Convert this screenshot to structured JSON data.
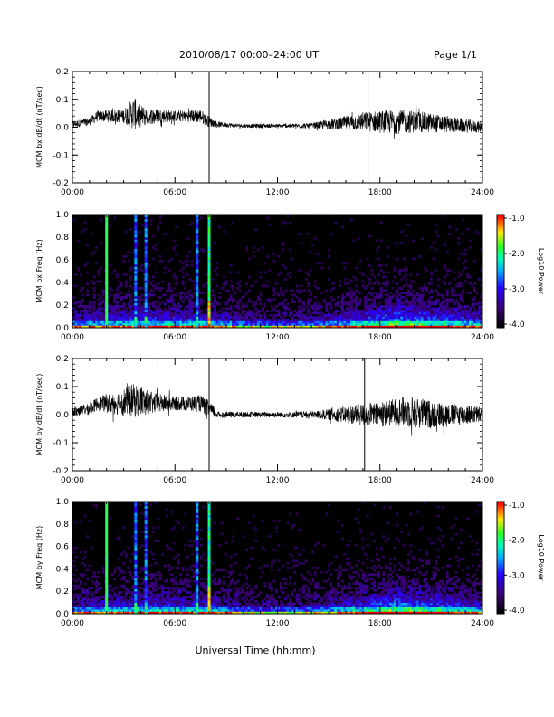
{
  "header": {
    "title": "2010/08/17  00:00–24:00 UT",
    "page": "Page 1/1"
  },
  "xaxis": {
    "label": "Universal Time (hh:mm)",
    "ticks": [
      "00:00",
      "06:00",
      "12:00",
      "18:00",
      "24:00"
    ]
  },
  "colorbar": {
    "label": "Log10 Power",
    "ticks": [
      "-1.0",
      "-2.0",
      "-3.0",
      "-4.0"
    ]
  },
  "chart_data": [
    {
      "type": "line",
      "ylabel": "MCM bx dB/dt (nT/sec)",
      "xlim": [
        0,
        24
      ],
      "ylim": [
        -0.2,
        0.2
      ],
      "yticks": [
        "0.2",
        "0.1",
        "0.0",
        "-0.1",
        "-0.2"
      ],
      "spikes_hours": [
        8.0,
        17.3
      ],
      "envelope": {
        "hours": [
          0,
          1,
          1.5,
          3,
          3.6,
          4,
          4.5,
          6,
          7.5,
          8,
          8.5,
          10,
          11,
          12,
          14,
          15,
          16,
          17,
          18,
          19,
          20,
          21,
          22,
          23,
          24
        ],
        "mean": [
          0.01,
          0.02,
          0.04,
          0.04,
          0.05,
          0.04,
          0.04,
          0.04,
          0.04,
          0.02,
          0.01,
          0.005,
          0.005,
          0.005,
          0.005,
          0.01,
          0.015,
          0.02,
          0.02,
          0.02,
          0.02,
          0.015,
          0.01,
          0.005,
          0.0
        ],
        "amplitude": [
          0.012,
          0.015,
          0.02,
          0.025,
          0.06,
          0.04,
          0.03,
          0.02,
          0.025,
          0.02,
          0.01,
          0.006,
          0.008,
          0.006,
          0.01,
          0.018,
          0.025,
          0.035,
          0.04,
          0.045,
          0.04,
          0.035,
          0.03,
          0.025,
          0.02
        ]
      }
    },
    {
      "type": "heatmap",
      "ylabel": "MCM bx Freq (Hz)",
      "xlim": [
        0,
        24
      ],
      "ylim": [
        0,
        1.0
      ],
      "yticks": [
        "1.0",
        "0.8",
        "0.6",
        "0.4",
        "0.2",
        "0.0"
      ],
      "zlim": [
        -4.0,
        -1.0
      ],
      "bright_lines_hours": [
        2.0,
        8.0
      ],
      "band_hours": [
        3.7,
        4.3,
        7.3
      ]
    },
    {
      "type": "line",
      "ylabel": "MCM by dB/dt (nT/sec)",
      "xlim": [
        0,
        24
      ],
      "ylim": [
        -0.2,
        0.2
      ],
      "yticks": [
        "0.2",
        "0.1",
        "0.0",
        "-0.1",
        "-0.2"
      ],
      "spikes_hours": [
        8.0,
        17.1
      ],
      "envelope": {
        "hours": [
          0,
          1,
          1.5,
          2.5,
          3.5,
          4,
          4.5,
          6,
          7.5,
          8,
          8.5,
          10,
          11,
          12,
          14,
          15,
          16,
          17,
          18,
          19,
          20,
          21,
          22,
          23,
          24
        ],
        "mean": [
          0.01,
          0.02,
          0.04,
          0.04,
          0.05,
          0.05,
          0.04,
          0.04,
          0.04,
          0.02,
          0.0,
          0.0,
          0.0,
          0.0,
          0.0,
          0.0,
          0.0,
          0.0,
          0.0,
          0.01,
          0.01,
          0.0,
          0.0,
          0.0,
          0.0
        ],
        "amplitude": [
          0.015,
          0.02,
          0.025,
          0.04,
          0.06,
          0.06,
          0.04,
          0.025,
          0.03,
          0.03,
          0.012,
          0.01,
          0.01,
          0.01,
          0.012,
          0.02,
          0.03,
          0.04,
          0.045,
          0.05,
          0.06,
          0.05,
          0.04,
          0.035,
          0.03
        ]
      }
    },
    {
      "type": "heatmap",
      "ylabel": "MCM by Freq (Hz)",
      "xlim": [
        0,
        24
      ],
      "ylim": [
        0,
        1.0
      ],
      "yticks": [
        "1.0",
        "0.8",
        "0.6",
        "0.4",
        "0.2",
        "0.0"
      ],
      "zlim": [
        -4.0,
        -1.0
      ],
      "bright_lines_hours": [
        2.0,
        8.0
      ],
      "band_hours": [
        3.7,
        4.3,
        7.3
      ]
    }
  ]
}
